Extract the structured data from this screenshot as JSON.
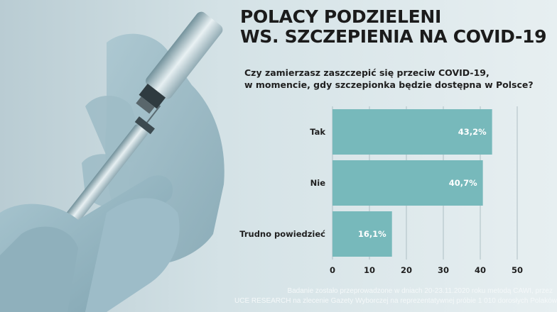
{
  "title": {
    "line1": "POLACY PODZIELENI",
    "line2": "WS. SZCZEPIENIA NA COVID-19"
  },
  "question": {
    "line1": "Czy zamierzasz zaszczepić się przeciw COVID-19,",
    "line2": "w momencie, gdy szczepionka będzie dostępna w Polsce?"
  },
  "footer": {
    "line1": "Badanie zostało przeprowadzone w dniach 20-23.11.2020 roku metodą CAWI, przez",
    "line2": "UCE RESEARCH na zlecenie Gazety Wyborczej na reprezentatywnej próbie 1 010 dorosłych Polaków"
  },
  "colors": {
    "bar": "#77b9bb",
    "bar_label": "#ffffff",
    "text": "#1f1f1f",
    "grid": "#aebfc4"
  },
  "chart_data": {
    "type": "bar",
    "orientation": "horizontal",
    "categories": [
      "Tak",
      "Nie",
      "Trudno powiedzieć"
    ],
    "values": [
      43.2,
      40.7,
      16.1
    ],
    "value_labels": [
      "43,2%",
      "40,7%",
      "16,1%"
    ],
    "xlim": [
      0,
      50
    ],
    "xticks": [
      "0",
      "10",
      "20",
      "30",
      "40",
      "50"
    ],
    "grid": true,
    "legend": "none"
  }
}
